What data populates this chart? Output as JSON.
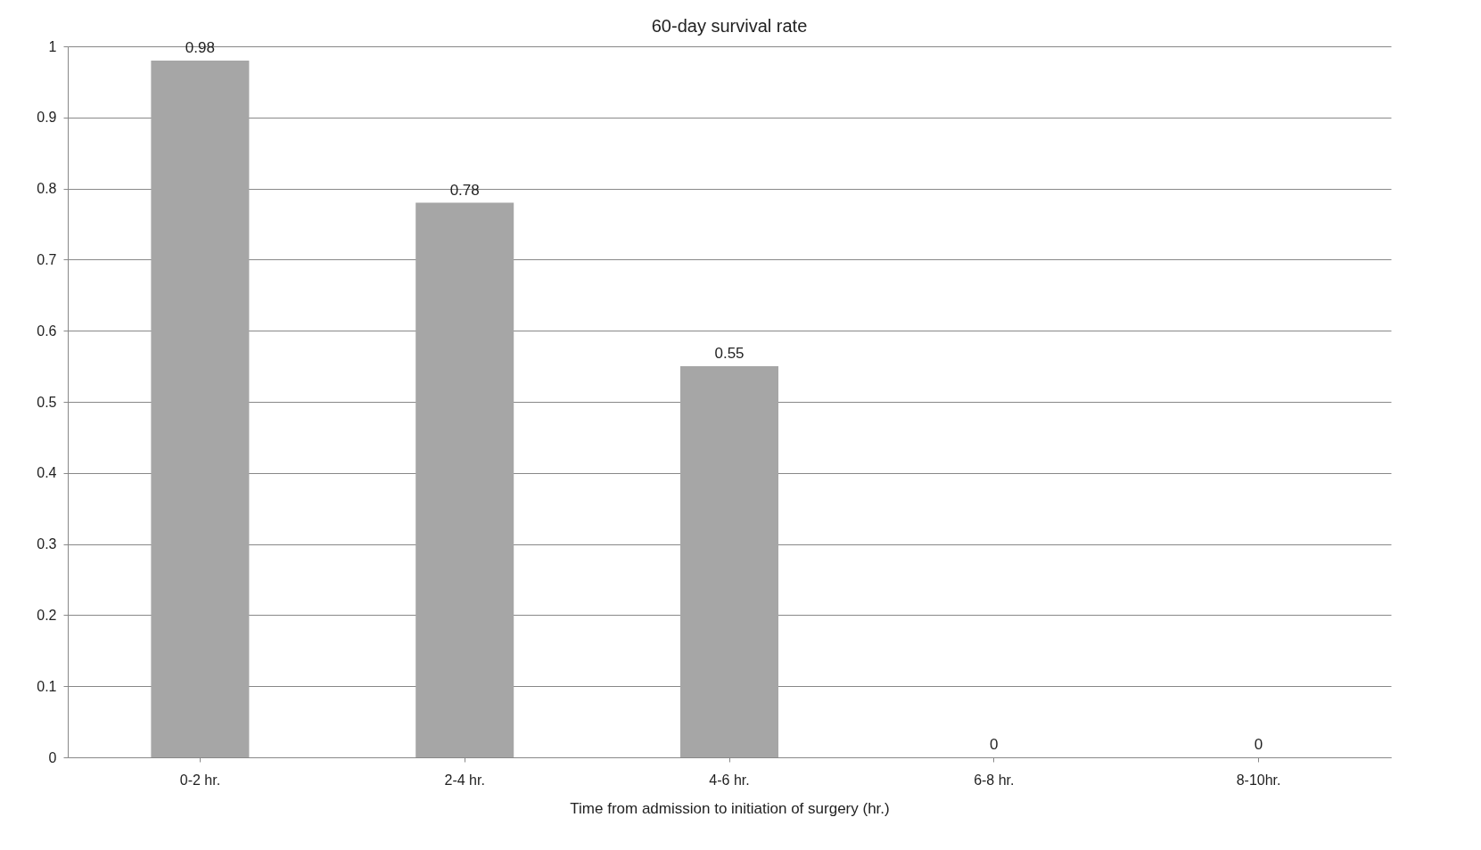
{
  "chart_data": {
    "type": "bar",
    "title": "60-day survival rate",
    "xlabel": "Time from admission to initiation of surgery (hr.)",
    "categories": [
      "0-2 hr.",
      "2-4 hr.",
      "4-6 hr.",
      "6-8 hr.",
      "8-10hr."
    ],
    "values": [
      0.98,
      0.78,
      0.55,
      0,
      0
    ],
    "color": "#a6a6a6",
    "ylim": [
      0,
      1
    ],
    "yticks": [
      0,
      0.1,
      0.2,
      0.3,
      0.4,
      0.5,
      0.6,
      0.7,
      0.8,
      0.9,
      1
    ],
    "grid": "y",
    "data_labels": true
  }
}
